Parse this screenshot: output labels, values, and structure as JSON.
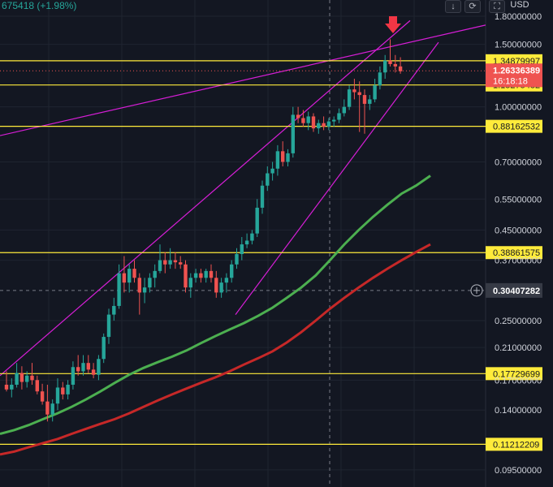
{
  "header": {
    "change_text": "675418 (+1.98%)",
    "currency": "USD",
    "down_icon": "arrow-down-icon",
    "camera_icon": "snapshot-icon",
    "fullscreen_icon": "fullscreen-icon"
  },
  "price_axis": {
    "ticks": [
      "1.80000000",
      "1.50000000",
      "1.00000000",
      "0.70000000",
      "0.55000000",
      "0.45000000",
      "0.37000000",
      "0.25000000",
      "0.21000000",
      "0.17000000",
      "0.14000000",
      "0.09500000"
    ],
    "current_price": "1.26336389",
    "countdown": "16:18:18",
    "crosshair_price": "0.30407282",
    "current_color": "#ef5350",
    "level_color": "#ffeb3b"
  },
  "chart_data": {
    "type": "candlestick",
    "scale": "log",
    "ylim": [
      0.085,
      2.0
    ],
    "horizontal_levels": [
      1.34879997,
      1.15275482,
      0.88162532,
      0.38861575,
      0.17729699,
      0.11212209
    ],
    "level_labels": [
      "1.34879997",
      "1.15275482",
      "0.88162532",
      "0.38861575",
      "0.17729699",
      "0.11212209"
    ],
    "current_price": 1.26336389,
    "crosshair_price": 0.30407282,
    "candles": [
      [
        0.165,
        0.18,
        0.158,
        0.16
      ],
      [
        0.16,
        0.172,
        0.152,
        0.165
      ],
      [
        0.165,
        0.19,
        0.162,
        0.178
      ],
      [
        0.178,
        0.186,
        0.16,
        0.168
      ],
      [
        0.168,
        0.18,
        0.162,
        0.175
      ],
      [
        0.175,
        0.19,
        0.165,
        0.17
      ],
      [
        0.17,
        0.175,
        0.155,
        0.158
      ],
      [
        0.158,
        0.166,
        0.145,
        0.148
      ],
      [
        0.148,
        0.165,
        0.13,
        0.136
      ],
      [
        0.136,
        0.15,
        0.13,
        0.146
      ],
      [
        0.146,
        0.172,
        0.14,
        0.162
      ],
      [
        0.162,
        0.168,
        0.15,
        0.155
      ],
      [
        0.155,
        0.17,
        0.15,
        0.165
      ],
      [
        0.165,
        0.192,
        0.16,
        0.185
      ],
      [
        0.185,
        0.2,
        0.175,
        0.18
      ],
      [
        0.18,
        0.2,
        0.175,
        0.19
      ],
      [
        0.19,
        0.2,
        0.178,
        0.182
      ],
      [
        0.182,
        0.19,
        0.172,
        0.176
      ],
      [
        0.176,
        0.2,
        0.17,
        0.195
      ],
      [
        0.195,
        0.23,
        0.19,
        0.225
      ],
      [
        0.225,
        0.27,
        0.215,
        0.26
      ],
      [
        0.26,
        0.29,
        0.25,
        0.275
      ],
      [
        0.275,
        0.36,
        0.27,
        0.34
      ],
      [
        0.34,
        0.38,
        0.3,
        0.32
      ],
      [
        0.32,
        0.36,
        0.3,
        0.35
      ],
      [
        0.35,
        0.37,
        0.32,
        0.33
      ],
      [
        0.33,
        0.34,
        0.26,
        0.3
      ],
      [
        0.3,
        0.33,
        0.28,
        0.31
      ],
      [
        0.31,
        0.34,
        0.3,
        0.33
      ],
      [
        0.33,
        0.36,
        0.31,
        0.345
      ],
      [
        0.345,
        0.41,
        0.34,
        0.37
      ],
      [
        0.37,
        0.39,
        0.34,
        0.36
      ],
      [
        0.36,
        0.4,
        0.35,
        0.37
      ],
      [
        0.37,
        0.39,
        0.35,
        0.365
      ],
      [
        0.365,
        0.38,
        0.35,
        0.36
      ],
      [
        0.36,
        0.37,
        0.3,
        0.31
      ],
      [
        0.31,
        0.34,
        0.29,
        0.33
      ],
      [
        0.33,
        0.35,
        0.32,
        0.34
      ],
      [
        0.34,
        0.35,
        0.32,
        0.33
      ],
      [
        0.33,
        0.35,
        0.32,
        0.345
      ],
      [
        0.345,
        0.36,
        0.32,
        0.33
      ],
      [
        0.33,
        0.345,
        0.29,
        0.3
      ],
      [
        0.3,
        0.33,
        0.29,
        0.32
      ],
      [
        0.32,
        0.34,
        0.3,
        0.33
      ],
      [
        0.33,
        0.37,
        0.32,
        0.36
      ],
      [
        0.36,
        0.4,
        0.35,
        0.385
      ],
      [
        0.385,
        0.43,
        0.37,
        0.41
      ],
      [
        0.41,
        0.44,
        0.4,
        0.42
      ],
      [
        0.42,
        0.45,
        0.41,
        0.44
      ],
      [
        0.44,
        0.55,
        0.43,
        0.52
      ],
      [
        0.52,
        0.62,
        0.5,
        0.6
      ],
      [
        0.6,
        0.68,
        0.58,
        0.65
      ],
      [
        0.65,
        0.7,
        0.62,
        0.67
      ],
      [
        0.67,
        0.78,
        0.64,
        0.75
      ],
      [
        0.75,
        0.8,
        0.68,
        0.7
      ],
      [
        0.7,
        0.76,
        0.68,
        0.74
      ],
      [
        0.74,
        1.0,
        0.72,
        0.95
      ],
      [
        0.95,
        1.0,
        0.9,
        0.93
      ],
      [
        0.93,
        0.98,
        0.88,
        0.9
      ],
      [
        0.9,
        0.97,
        0.86,
        0.94
      ],
      [
        0.94,
        0.96,
        0.85,
        0.87
      ],
      [
        0.87,
        0.92,
        0.84,
        0.9
      ],
      [
        0.9,
        0.94,
        0.86,
        0.88
      ],
      [
        0.88,
        0.93,
        0.86,
        0.91
      ],
      [
        0.91,
        0.94,
        0.88,
        0.92
      ],
      [
        0.92,
        0.99,
        0.9,
        0.96
      ],
      [
        0.96,
        1.05,
        0.94,
        1.0
      ],
      [
        1.0,
        1.15,
        0.98,
        1.12
      ],
      [
        1.12,
        1.2,
        1.05,
        1.1
      ],
      [
        1.1,
        1.18,
        0.85,
        1.08
      ],
      [
        1.08,
        1.12,
        0.84,
        1.02
      ],
      [
        1.02,
        1.08,
        0.98,
        1.05
      ],
      [
        1.05,
        1.2,
        1.03,
        1.15
      ],
      [
        1.15,
        1.3,
        1.12,
        1.25
      ],
      [
        1.25,
        1.4,
        1.2,
        1.35
      ],
      [
        1.35,
        1.55,
        1.3,
        1.32
      ],
      [
        1.32,
        1.4,
        1.25,
        1.3
      ],
      [
        1.3,
        1.38,
        1.24,
        1.26
      ]
    ],
    "series": [
      {
        "name": "",
        "color": "#4caf50",
        "values": [
          0.12,
          0.123,
          0.127,
          0.132,
          0.137,
          0.143,
          0.15,
          0.158,
          0.167,
          0.176,
          0.184,
          0.191,
          0.198,
          0.206,
          0.216,
          0.226,
          0.236,
          0.246,
          0.258,
          0.272,
          0.29,
          0.31,
          0.335,
          0.37,
          0.41,
          0.45,
          0.49,
          0.53,
          0.57,
          0.6,
          0.64
        ]
      },
      {
        "name": "",
        "color": "#c62828",
        "values": [
          0.105,
          0.107,
          0.11,
          0.113,
          0.116,
          0.12,
          0.124,
          0.128,
          0.132,
          0.137,
          0.143,
          0.149,
          0.155,
          0.161,
          0.167,
          0.173,
          0.18,
          0.188,
          0.196,
          0.205,
          0.217,
          0.232,
          0.25,
          0.27,
          0.29,
          0.31,
          0.33,
          0.35,
          0.37,
          0.39,
          0.41
        ]
      }
    ],
    "trendlines_color": "#d61ed6"
  }
}
